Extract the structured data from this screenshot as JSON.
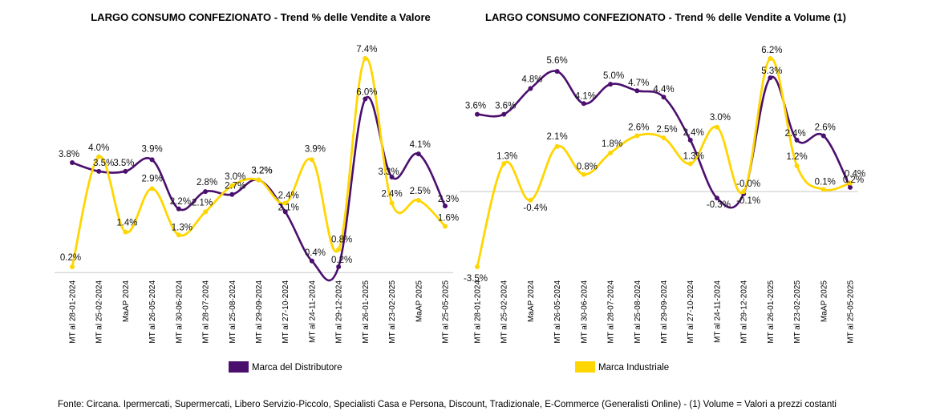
{
  "footer": "Fonte: Circana. Ipermercati, Supermercati, Libero Servizio-Piccolo, Specialisti Casa e Persona, Discount, Tradizionale, E-Commerce (Generalisti Online) - (1) Volume = Valori a prezzi costanti",
  "colors": {
    "distributore": "#4B0F6E",
    "industriale": "#FFD600"
  },
  "chart_data": [
    {
      "type": "line",
      "title": "LARGO CONSUMO CONFEZIONATO - Trend % delle Vendite a Valore",
      "categories": [
        "MT al 28-01-2024",
        "MT al 25-02-2024",
        "MaAP 2024",
        "MT al 26-05-2024",
        "MT al 30-06-2024",
        "MT al 28-07-2024",
        "MT al 25-08-2024",
        "MT al 29-09-2024",
        "MT al 27-10-2024",
        "MT al 24-11-2024",
        "MT al 29-12-2024",
        "MT al 26-01-2025",
        "MT al 23-02-2025",
        "MaAP 2025",
        "MT al 25-05-2025"
      ],
      "ylim": [
        0,
        8
      ],
      "series": [
        {
          "name": "Marca del Distributore",
          "values": [
            3.8,
            3.5,
            3.5,
            3.9,
            2.2,
            2.8,
            2.7,
            3.2,
            2.1,
            0.4,
            0.2,
            6.0,
            3.3,
            4.1,
            2.3
          ],
          "labels": [
            "3.8%",
            "3.5%",
            "3.5%",
            "3.9%",
            "2.2%",
            "2.8%",
            "2.7%",
            "3.2%",
            "2.1%",
            "0.4%",
            "0.2%",
            "6.0%",
            "3.3%",
            "4.1%",
            "2.3%"
          ]
        },
        {
          "name": "Marca Industriale",
          "values": [
            0.2,
            4.0,
            1.4,
            2.9,
            1.3,
            2.1,
            3.0,
            3.2,
            2.4,
            3.9,
            0.8,
            7.4,
            2.4,
            2.5,
            1.6
          ],
          "labels": [
            "0.2%",
            "4.0%",
            "1.4%",
            "2.9%",
            "1.3%",
            "2.1%",
            "3.0%",
            "3.2%",
            "2.4%",
            "3.9%",
            "0.8%",
            "7.4%",
            "2.4%",
            "2.5%",
            "1.6%"
          ]
        }
      ],
      "legend": "Marca del Distributore"
    },
    {
      "type": "line",
      "title": "LARGO CONSUMO CONFEZIONATO - Trend % delle Vendite a Volume (1)",
      "categories": [
        "MT al 28-01-2024",
        "MT al 25-02-2024",
        "MaAP 2024",
        "MT al 26-05-2024",
        "MT al 30-06-2024",
        "MT al 28-07-2024",
        "MT al 25-08-2024",
        "MT al 29-09-2024",
        "MT al 27-10-2024",
        "MT al 24-11-2024",
        "MT al 29-12-2024",
        "MT al 26-01-2025",
        "MT al 23-02-2025",
        "MaAP 2025",
        "MT al 25-05-2025"
      ],
      "ylim": [
        -4,
        7
      ],
      "series": [
        {
          "name": "Marca del Distributore",
          "values": [
            3.6,
            3.6,
            4.8,
            5.6,
            4.1,
            5.0,
            4.7,
            4.4,
            2.4,
            -0.3,
            -0.1,
            5.3,
            2.4,
            2.6,
            0.2
          ],
          "labels": [
            "3.6%",
            "3.6%",
            "4.8%",
            "5.6%",
            "4.1%",
            "5.0%",
            "4.7%",
            "4.4%",
            "2.4%",
            "-0.3%",
            "-0.1%",
            "5.3%",
            "2.4%",
            "2.6%",
            "0.2%"
          ]
        },
        {
          "name": "Marca Industriale",
          "values": [
            -3.5,
            1.3,
            -0.4,
            2.1,
            0.8,
            1.8,
            2.6,
            2.5,
            1.3,
            3.0,
            -0.0,
            6.2,
            1.2,
            0.1,
            0.4
          ],
          "labels": [
            "-3.5%",
            "1.3%",
            "-0.4%",
            "2.1%",
            "0.8%",
            "1.8%",
            "2.6%",
            "2.5%",
            "1.3%",
            "3.0%",
            "-0.0%",
            "6.2%",
            "1.2%",
            "0.1%",
            "0.4%"
          ]
        }
      ],
      "legend": "Marca Industriale"
    }
  ]
}
